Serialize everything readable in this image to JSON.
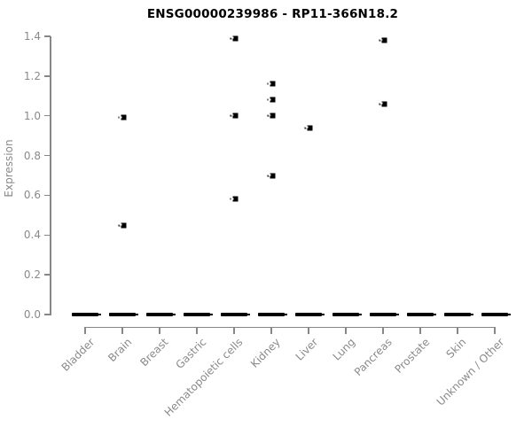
{
  "chart_data": {
    "type": "scatter",
    "title": "ENSG00000239986 - RP11-366N18.2",
    "xlabel": "",
    "ylabel": "Expression",
    "ylim": [
      0.0,
      1.4
    ],
    "ytick_labels": [
      "0.0",
      "0.2",
      "0.4",
      "0.6",
      "0.8",
      "1.0",
      "1.2",
      "1.4"
    ],
    "grid": false,
    "legend_position": "none",
    "marker_style": "small black square with left whisker",
    "categories": [
      "Bladder",
      "Brain",
      "Breast",
      "Gastric",
      "Hematopoietic cells",
      "Kidney",
      "Liver",
      "Lung",
      "Pancreas",
      "Prostate",
      "Skin",
      "Unknown / Other"
    ],
    "points": [
      {
        "category": "Brain",
        "value": 0.99
      },
      {
        "category": "Brain",
        "value": 0.45
      },
      {
        "category": "Hematopoietic cells",
        "value": 1.39
      },
      {
        "category": "Hematopoietic cells",
        "value": 1.0
      },
      {
        "category": "Hematopoietic cells",
        "value": 0.58
      },
      {
        "category": "Kidney",
        "value": 1.16
      },
      {
        "category": "Kidney",
        "value": 1.08
      },
      {
        "category": "Kidney",
        "value": 1.0
      },
      {
        "category": "Kidney",
        "value": 0.7
      },
      {
        "category": "Liver",
        "value": 0.94
      },
      {
        "category": "Pancreas",
        "value": 1.38
      },
      {
        "category": "Pancreas",
        "value": 1.06
      }
    ],
    "zero_bar_value": 0.0,
    "zero_bar_categories": [
      "Bladder",
      "Brain",
      "Breast",
      "Gastric",
      "Hematopoietic cells",
      "Kidney",
      "Liver",
      "Lung",
      "Pancreas",
      "Prostate",
      "Skin",
      "Unknown / Other"
    ]
  },
  "colors": {
    "background": "#ffffff",
    "title_text": "#000000",
    "axis_line": "#878787",
    "axis_label_text": "#8a8a8a",
    "marker": "#000000"
  }
}
